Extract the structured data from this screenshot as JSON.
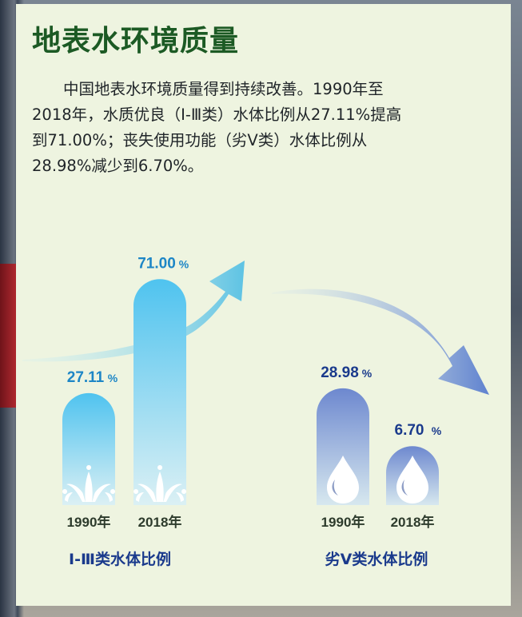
{
  "page": {
    "title": "地表水环境质量",
    "intro": "中国地表水环境质量得到持续改善。1990年至2018年，水质优良（Ⅰ-Ⅲ类）水体比例从27.11%提高到71.00%；丧失使用功能（劣Ⅴ类）水体比例从28.98%减少到6.70%。"
  },
  "colors": {
    "title": "#1c5a24",
    "group1_bar_top": "#4fc3ef",
    "group1_bar_bottom": "#dbf0f4",
    "group1_value": "#1d86c6",
    "group2_bar_top": "#6d88cf",
    "group2_bar_bottom": "#d7e8ef",
    "group2_value": "#1a3a8c"
  },
  "chart_data": {
    "type": "bar",
    "unit": "%",
    "groups": [
      {
        "label": "Ⅰ-Ⅲ类水体比例",
        "categories": [
          "1990年",
          "2018年"
        ],
        "values": [
          27.11,
          71.0
        ],
        "value_labels": [
          "27.11",
          "71.00"
        ],
        "icon": "water-splash-icon",
        "trend": "up-arrow"
      },
      {
        "label": "劣Ⅴ类水体比例",
        "categories": [
          "1990年",
          "2018年"
        ],
        "values": [
          28.98,
          6.7
        ],
        "value_labels": [
          "28.98",
          "6.70"
        ],
        "icon": "water-drop-icon",
        "trend": "down-arrow"
      }
    ]
  }
}
